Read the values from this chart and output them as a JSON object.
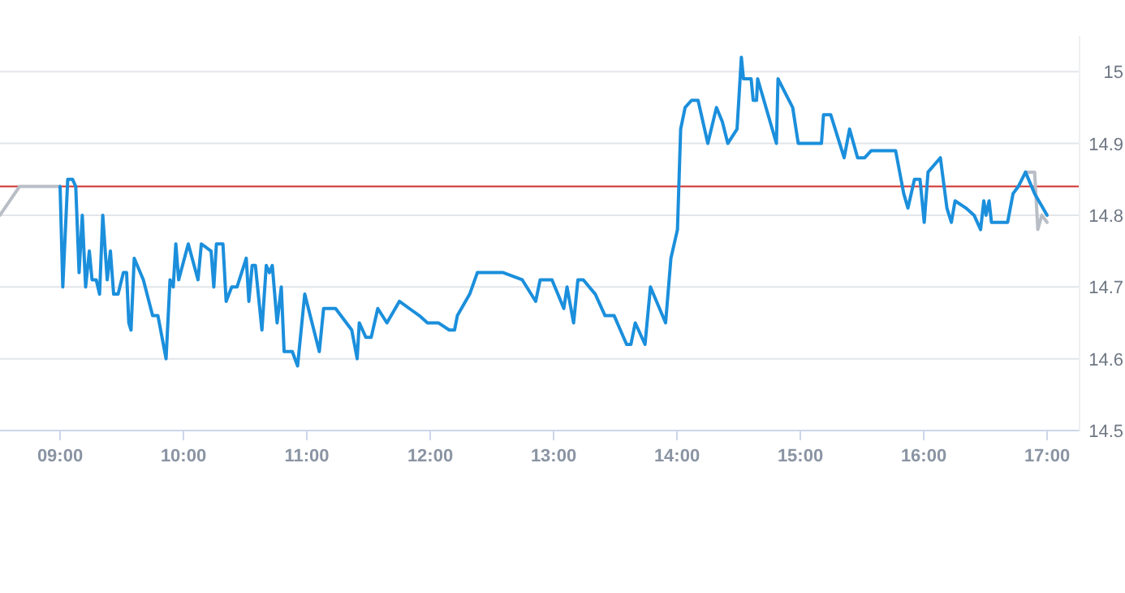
{
  "chart_data": {
    "type": "line",
    "xlim": [
      8.513,
      17.263
    ],
    "ylim": [
      14.5,
      15.05
    ],
    "xticks": [
      {
        "value": 9,
        "label": "09:00"
      },
      {
        "value": 10,
        "label": "10:00"
      },
      {
        "value": 11,
        "label": "11:00"
      },
      {
        "value": 12,
        "label": "12:00"
      },
      {
        "value": 13,
        "label": "13:00"
      },
      {
        "value": 14,
        "label": "14:00"
      },
      {
        "value": 15,
        "label": "15:00"
      },
      {
        "value": 16,
        "label": "16:00"
      },
      {
        "value": 17,
        "label": "17:00"
      }
    ],
    "yticks": [
      14.5,
      14.6,
      14.7,
      14.8,
      14.9,
      15
    ],
    "grid": "y",
    "marker": "none",
    "line_style": "solid",
    "ref_lines": [
      {
        "axis": "y",
        "value": 14.84,
        "color": "#d0312d"
      }
    ],
    "series": [
      {
        "color": "#b9bec6",
        "x": [
          8.513,
          8.671,
          9.0
        ],
        "values": [
          14.8,
          14.84,
          14.84
        ]
      },
      {
        "color": "#b9bec6",
        "x": [
          16.825,
          16.899,
          16.925,
          16.957,
          17.0
        ],
        "values": [
          14.86,
          14.86,
          14.78,
          14.8,
          14.79
        ]
      },
      {
        "color": "#1b8fdc",
        "x": [
          9.0,
          9.022,
          9.062,
          9.101,
          9.127,
          9.154,
          9.18,
          9.207,
          9.237,
          9.259,
          9.293,
          9.32,
          9.346,
          9.382,
          9.408,
          9.434,
          9.47,
          9.513,
          9.539,
          9.557,
          9.575,
          9.601,
          9.675,
          9.75,
          9.793,
          9.859,
          9.891,
          9.917,
          9.938,
          9.961,
          10.039,
          10.118,
          10.145,
          10.224,
          10.246,
          10.267,
          10.32,
          10.346,
          10.391,
          10.434,
          10.509,
          10.53,
          10.557,
          10.583,
          10.636,
          10.671,
          10.697,
          10.72,
          10.759,
          10.793,
          10.816,
          10.882,
          10.925,
          10.983,
          11.101,
          11.136,
          11.233,
          11.364,
          11.408,
          11.425,
          11.478,
          11.522,
          11.575,
          11.649,
          11.75,
          11.912,
          11.978,
          12.066,
          12.154,
          12.197,
          12.22,
          12.32,
          12.382,
          12.592,
          12.746,
          12.855,
          12.891,
          12.987,
          13.083,
          13.109,
          13.162,
          13.197,
          13.241,
          13.338,
          13.417,
          13.491,
          13.592,
          13.627,
          13.662,
          13.741,
          13.785,
          13.908,
          13.951,
          14.004,
          14.03,
          14.066,
          14.118,
          14.171,
          14.25,
          14.32,
          14.368,
          14.412,
          14.487,
          14.522,
          14.539,
          14.601,
          14.618,
          14.645,
          14.654,
          14.806,
          14.819,
          14.938,
          14.983,
          15.171,
          15.188,
          15.246,
          15.355,
          15.399,
          15.464,
          15.522,
          15.575,
          15.772,
          15.838,
          15.872,
          15.925,
          15.97,
          16.004,
          16.035,
          16.135,
          16.188,
          16.224,
          16.254,
          16.342,
          16.408,
          16.461,
          16.487,
          16.505,
          16.53,
          16.549,
          16.68,
          16.724,
          16.767,
          16.825,
          16.899,
          17.0
        ],
        "values": [
          14.84,
          14.7,
          14.85,
          14.85,
          14.84,
          14.72,
          14.8,
          14.7,
          14.75,
          14.71,
          14.71,
          14.69,
          14.8,
          14.71,
          14.75,
          14.69,
          14.69,
          14.72,
          14.72,
          14.65,
          14.64,
          14.74,
          14.71,
          14.66,
          14.66,
          14.6,
          14.71,
          14.7,
          14.76,
          14.71,
          14.76,
          14.71,
          14.76,
          14.75,
          14.7,
          14.76,
          14.76,
          14.68,
          14.7,
          14.7,
          14.74,
          14.68,
          14.73,
          14.73,
          14.64,
          14.73,
          14.72,
          14.73,
          14.65,
          14.7,
          14.61,
          14.61,
          14.59,
          14.69,
          14.61,
          14.67,
          14.67,
          14.64,
          14.6,
          14.65,
          14.63,
          14.63,
          14.67,
          14.65,
          14.68,
          14.66,
          14.65,
          14.65,
          14.64,
          14.64,
          14.66,
          14.69,
          14.72,
          14.72,
          14.71,
          14.68,
          14.71,
          14.71,
          14.67,
          14.7,
          14.65,
          14.71,
          14.71,
          14.69,
          14.66,
          14.66,
          14.62,
          14.62,
          14.65,
          14.62,
          14.7,
          14.65,
          14.74,
          14.78,
          14.92,
          14.95,
          14.96,
          14.96,
          14.9,
          14.95,
          14.93,
          14.9,
          14.92,
          15.02,
          14.99,
          14.99,
          14.96,
          14.96,
          14.99,
          14.9,
          14.99,
          14.95,
          14.9,
          14.9,
          14.94,
          14.94,
          14.88,
          14.92,
          14.88,
          14.88,
          14.89,
          14.89,
          14.83,
          14.81,
          14.85,
          14.85,
          14.79,
          14.86,
          14.88,
          14.81,
          14.79,
          14.82,
          14.81,
          14.8,
          14.78,
          14.82,
          14.8,
          14.82,
          14.79,
          14.79,
          14.83,
          14.84,
          14.86,
          14.83,
          14.8
        ]
      }
    ]
  }
}
